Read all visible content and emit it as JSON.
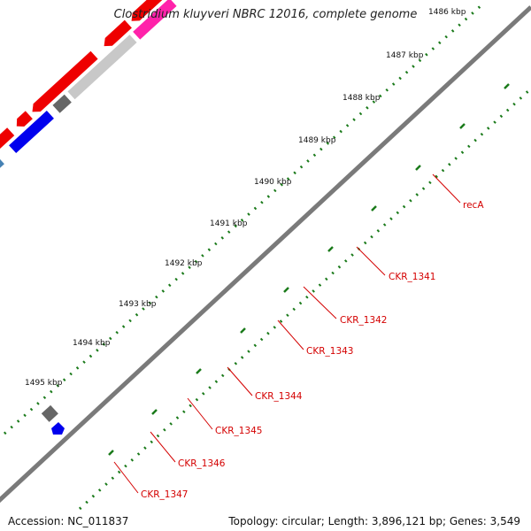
{
  "title": "Clostridium kluyveri NBRC 12016, complete genome",
  "footer": {
    "accession": "Accession: NC_011837",
    "summary": "Topology: circular; Length: 3,896,121 bp; Genes: 3,549"
  },
  "ticks": [
    "1486 kbp",
    "1487 kbp",
    "1488 kbp",
    "1489 kbp",
    "1490 kbp",
    "1491 kbp",
    "1492 kbp",
    "1493 kbp",
    "1494 kbp",
    "1495 kbp"
  ],
  "gene_labels": [
    "recA",
    "CKR_1341",
    "CKR_1342",
    "CKR_1343",
    "CKR_1344",
    "CKR_1345",
    "CKR_1346",
    "CKR_1347"
  ],
  "colors": {
    "backbone": "#7a7a7a",
    "tick": "#1a7a1a",
    "cds": "#ee0000",
    "label": "#d40000"
  }
}
